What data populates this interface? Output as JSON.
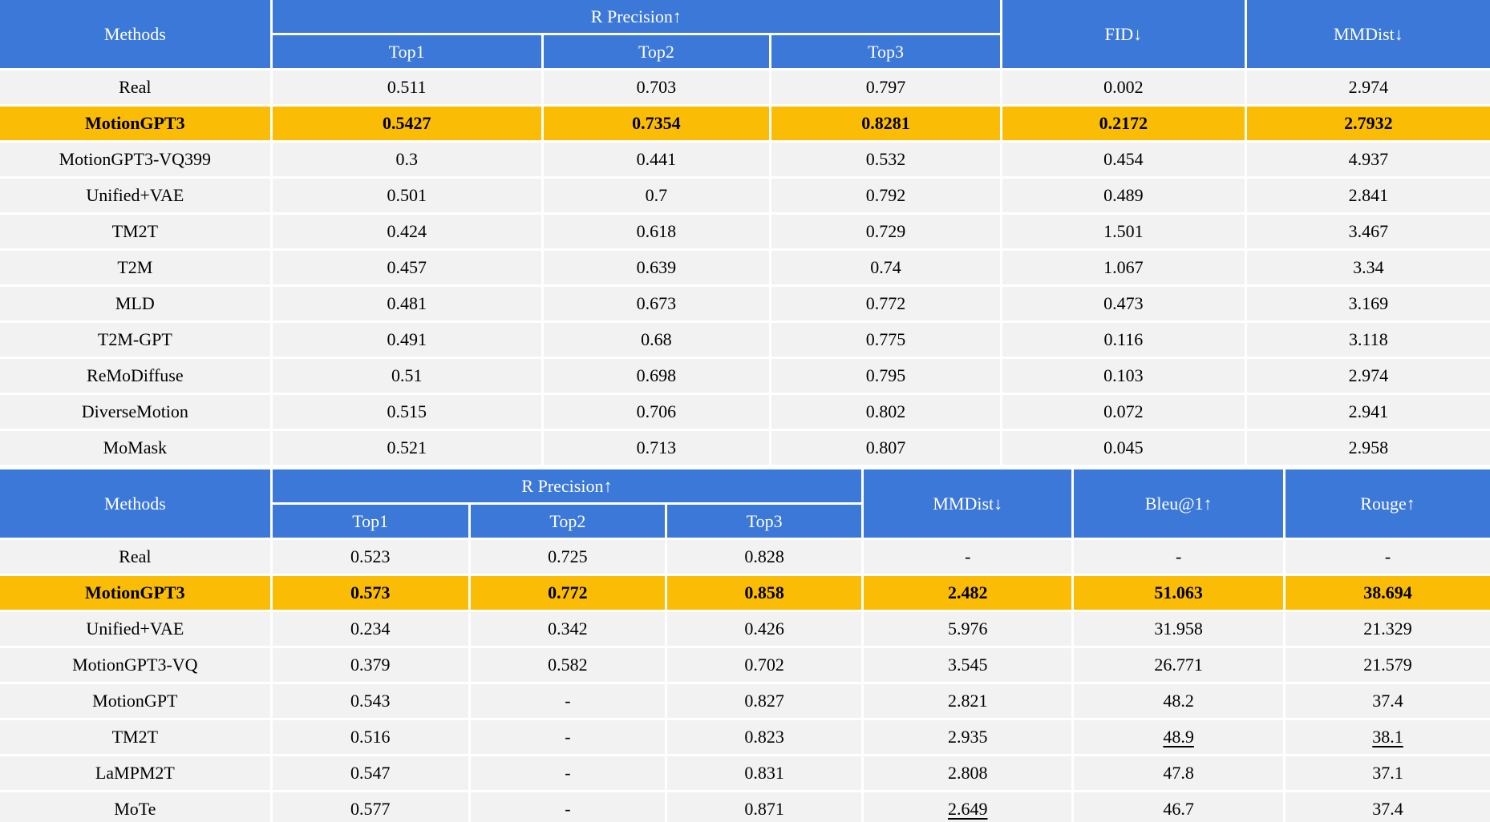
{
  "colors": {
    "header_blue": "#3C78D8",
    "highlight_orange": "#FBBC05",
    "row_gray": "#F2F2F2",
    "header_text": "#FFFFFF",
    "body_text": "#000000"
  },
  "table1": {
    "header": {
      "methods": "Methods",
      "r_precision": "R Precision↑",
      "top1": "Top1",
      "top2": "Top2",
      "top3": "Top3",
      "col4": "FID↓",
      "col5": "MMDist↓"
    },
    "rows": [
      {
        "method": "Real",
        "highlight": false,
        "cells": [
          "0.511",
          "0.703",
          "0.797",
          "0.002",
          "2.974"
        ]
      },
      {
        "method": "MotionGPT3",
        "highlight": true,
        "cells": [
          "0.5427",
          "0.7354",
          "0.8281",
          "0.2172",
          "2.7932"
        ]
      },
      {
        "method": "MotionGPT3-VQ399",
        "highlight": false,
        "cells": [
          "0.3",
          "0.441",
          "0.532",
          "0.454",
          "4.937"
        ]
      },
      {
        "method": "Unified+VAE",
        "highlight": false,
        "cells": [
          "0.501",
          "0.7",
          "0.792",
          "0.489",
          "2.841"
        ]
      },
      {
        "method": "TM2T",
        "highlight": false,
        "cells": [
          "0.424",
          "0.618",
          "0.729",
          "1.501",
          "3.467"
        ]
      },
      {
        "method": "T2M",
        "highlight": false,
        "cells": [
          "0.457",
          "0.639",
          "0.74",
          "1.067",
          "3.34"
        ]
      },
      {
        "method": "MLD",
        "highlight": false,
        "cells": [
          "0.481",
          "0.673",
          "0.772",
          "0.473",
          "3.169"
        ]
      },
      {
        "method": "T2M-GPT",
        "highlight": false,
        "cells": [
          "0.491",
          "0.68",
          "0.775",
          "0.116",
          "3.118"
        ]
      },
      {
        "method": "ReMoDiffuse",
        "highlight": false,
        "cells": [
          "0.51",
          "0.698",
          "0.795",
          "0.103",
          "2.974"
        ]
      },
      {
        "method": "DiverseMotion",
        "highlight": false,
        "cells": [
          "0.515",
          "0.706",
          "0.802",
          "0.072",
          "2.941"
        ]
      },
      {
        "method": "MoMask",
        "highlight": false,
        "cells": [
          "0.521",
          "0.713",
          "0.807",
          "0.045",
          "2.958"
        ]
      }
    ]
  },
  "table2": {
    "header": {
      "methods": "Methods",
      "r_precision": "R Precision↑",
      "top1": "Top1",
      "top2": "Top2",
      "top3": "Top3",
      "col4": "MMDist↓",
      "col5": "Bleu@1↑",
      "col6": "Rouge↑"
    },
    "rows": [
      {
        "method": "Real",
        "highlight": false,
        "cells": [
          "0.523",
          "0.725",
          "0.828",
          "-",
          "-",
          "-"
        ]
      },
      {
        "method": "MotionGPT3",
        "highlight": true,
        "cells": [
          "0.573",
          "0.772",
          "0.858",
          "2.482",
          "51.063",
          "38.694"
        ]
      },
      {
        "method": "Unified+VAE",
        "highlight": false,
        "cells": [
          "0.234",
          "0.342",
          "0.426",
          "5.976",
          "31.958",
          "21.329"
        ]
      },
      {
        "method": "MotionGPT3-VQ",
        "highlight": false,
        "cells": [
          "0.379",
          "0.582",
          "0.702",
          "3.545",
          "26.771",
          "21.579"
        ]
      },
      {
        "method": "MotionGPT",
        "highlight": false,
        "cells": [
          "0.543",
          "-",
          "0.827",
          "2.821",
          "48.2",
          "37.4"
        ]
      },
      {
        "method": "TM2T",
        "highlight": false,
        "cells": [
          "0.516",
          "-",
          "0.823",
          "2.935",
          {
            "text": "48.9",
            "underline": true
          },
          {
            "text": "38.1",
            "underline": true
          }
        ]
      },
      {
        "method": "LaMPM2T",
        "highlight": false,
        "cells": [
          "0.547",
          "-",
          "0.831",
          "2.808",
          "47.8",
          "37.1"
        ]
      },
      {
        "method": "MoTe",
        "highlight": false,
        "cells": [
          "0.577",
          "-",
          "0.871",
          {
            "text": "2.649",
            "underline": true
          },
          "46.7",
          "37.4"
        ]
      }
    ]
  }
}
